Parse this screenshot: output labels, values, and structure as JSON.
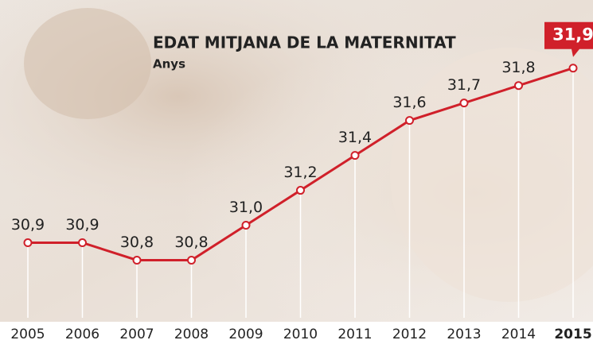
{
  "chart_data": {
    "type": "line",
    "title": "EDAT MITJANA DE LA MATERNITAT",
    "subtitle": "Anys",
    "categories": [
      "2005",
      "2006",
      "2007",
      "2008",
      "2009",
      "2010",
      "2011",
      "2012",
      "2013",
      "2014",
      "2015"
    ],
    "values": [
      30.9,
      30.9,
      30.8,
      30.8,
      31.0,
      31.2,
      31.4,
      31.6,
      31.7,
      31.8,
      31.9
    ],
    "value_labels": [
      "30,9",
      "30,9",
      "30,8",
      "30,8",
      "31,0",
      "31,2",
      "31,4",
      "31,6",
      "31,7",
      "31,8",
      "31,9"
    ],
    "color": "#d0202a",
    "ylim": [
      30.47,
      32.29
    ]
  }
}
